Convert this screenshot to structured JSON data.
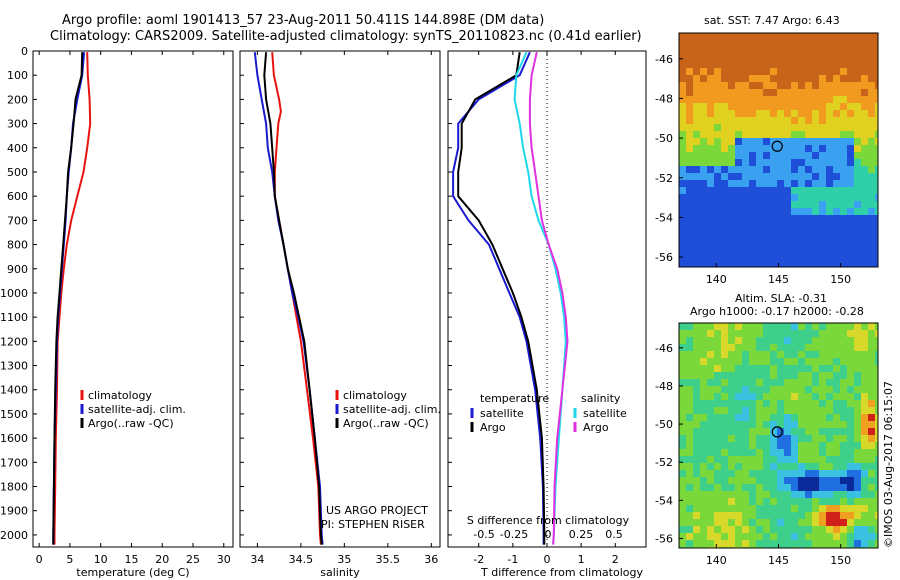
{
  "header": {
    "line1": "Argo profile: aoml 1901413_57 23-Aug-2011 50.411S 144.898E (DM data)",
    "line2": "Climatology: CARS2009. Satellite-adjusted climatology: synTS_20110823.nc (0.41d earlier)"
  },
  "sst_map": {
    "title": "sat. SST: 7.47 Argo: 6.43"
  },
  "sla_map": {
    "title_line1": "Altim. SLA: -0.31",
    "title_line2": "Argo h1000: -0.17 h2000: -0.28"
  },
  "credit": {
    "project_line1": "US ARGO PROJECT",
    "project_line2": "PI: STEPHEN RISER",
    "stamp": "©IMOS 03-Aug-2017 06:15:07"
  },
  "colors": {
    "climatology": "#e8120f",
    "satellite": "#1a1ad0",
    "argo": "#000000",
    "sal_satellite": "#1fd8ec",
    "sal_argo": "#e030e0"
  },
  "chart_data": [
    {
      "type": "line",
      "xlabel": "temperature (deg C)",
      "ylabel": "",
      "xlim": [
        -1,
        31.5
      ],
      "ylim": [
        2050,
        0
      ],
      "xticks": [
        0,
        5,
        10,
        15,
        20,
        25,
        30
      ],
      "yticks": [
        0,
        100,
        200,
        300,
        400,
        500,
        600,
        700,
        800,
        900,
        1000,
        1100,
        1200,
        1300,
        1400,
        1500,
        1600,
        1700,
        1800,
        1900,
        2000
      ],
      "legend": [
        "climatology",
        "satellite-adj. clim.",
        "Argo(..raw -QC)"
      ],
      "series": [
        {
          "name": "climatology",
          "color": "#e8120f",
          "points": [
            [
              7.8,
              5
            ],
            [
              7.9,
              100
            ],
            [
              8.2,
              200
            ],
            [
              8.3,
              300
            ],
            [
              7.8,
              400
            ],
            [
              7.2,
              500
            ],
            [
              6.2,
              600
            ],
            [
              5.2,
              700
            ],
            [
              4.5,
              800
            ],
            [
              4.0,
              900
            ],
            [
              3.6,
              1000
            ],
            [
              3.3,
              1100
            ],
            [
              3.0,
              1200
            ],
            [
              2.9,
              1400
            ],
            [
              2.7,
              1600
            ],
            [
              2.6,
              1800
            ],
            [
              2.5,
              2000
            ],
            [
              2.5,
              2040
            ]
          ]
        },
        {
          "name": "satellite-adj. clim.",
          "color": "#1a1ad0",
          "points": [
            [
              7.3,
              5
            ],
            [
              7.0,
              100
            ],
            [
              6.2,
              200
            ],
            [
              5.5,
              300
            ],
            [
              5.2,
              400
            ],
            [
              4.8,
              500
            ],
            [
              4.5,
              600
            ],
            [
              4.3,
              700
            ],
            [
              4.0,
              800
            ],
            [
              3.7,
              900
            ],
            [
              3.4,
              1000
            ],
            [
              3.1,
              1100
            ],
            [
              2.9,
              1200
            ],
            [
              2.7,
              1400
            ],
            [
              2.5,
              1600
            ],
            [
              2.4,
              1800
            ],
            [
              2.3,
              2000
            ],
            [
              2.3,
              2040
            ]
          ]
        },
        {
          "name": "Argo(..raw -QC)",
          "color": "#000000",
          "points": [
            [
              7.0,
              5
            ],
            [
              6.9,
              100
            ],
            [
              5.9,
              200
            ],
            [
              5.6,
              300
            ],
            [
              5.2,
              400
            ],
            [
              4.7,
              500
            ],
            [
              4.5,
              600
            ],
            [
              4.2,
              700
            ],
            [
              3.9,
              800
            ],
            [
              3.6,
              900
            ],
            [
              3.3,
              1000
            ],
            [
              3.0,
              1100
            ],
            [
              2.8,
              1200
            ],
            [
              2.6,
              1400
            ],
            [
              2.5,
              1600
            ],
            [
              2.4,
              1800
            ],
            [
              2.3,
              2000
            ],
            [
              2.3,
              2040
            ]
          ]
        }
      ]
    },
    {
      "type": "line",
      "xlabel": "salinity",
      "xlim": [
        33.8,
        36.1
      ],
      "ylim": [
        2050,
        0
      ],
      "xticks": [
        34,
        34.5,
        35,
        35.5,
        36
      ],
      "legend": [
        "climatology",
        "satellite-adj. clim.",
        "Argo(..raw -QC)"
      ],
      "series": [
        {
          "name": "climatology",
          "color": "#e8120f",
          "points": [
            [
              34.17,
              5
            ],
            [
              34.19,
              100
            ],
            [
              34.25,
              200
            ],
            [
              34.27,
              250
            ],
            [
              34.24,
              300
            ],
            [
              34.22,
              400
            ],
            [
              34.2,
              500
            ],
            [
              34.2,
              600
            ],
            [
              34.25,
              700
            ],
            [
              34.3,
              800
            ],
            [
              34.35,
              900
            ],
            [
              34.4,
              1000
            ],
            [
              34.45,
              1100
            ],
            [
              34.5,
              1200
            ],
            [
              34.57,
              1400
            ],
            [
              34.64,
              1600
            ],
            [
              34.7,
              1800
            ],
            [
              34.72,
              2000
            ],
            [
              34.73,
              2040
            ]
          ]
        },
        {
          "name": "satellite-adj. clim.",
          "color": "#1a1ad0",
          "points": [
            [
              33.97,
              5
            ],
            [
              34.0,
              100
            ],
            [
              34.05,
              200
            ],
            [
              34.1,
              300
            ],
            [
              34.12,
              400
            ],
            [
              34.17,
              500
            ],
            [
              34.2,
              600
            ],
            [
              34.24,
              700
            ],
            [
              34.3,
              800
            ],
            [
              34.35,
              900
            ],
            [
              34.4,
              1000
            ],
            [
              34.47,
              1100
            ],
            [
              34.53,
              1200
            ],
            [
              34.6,
              1400
            ],
            [
              34.66,
              1600
            ],
            [
              34.72,
              1800
            ],
            [
              34.74,
              2000
            ],
            [
              34.75,
              2040
            ]
          ]
        },
        {
          "name": "Argo(..raw -QC)",
          "color": "#000000",
          "points": [
            [
              34.1,
              5
            ],
            [
              34.08,
              100
            ],
            [
              34.1,
              200
            ],
            [
              34.15,
              300
            ],
            [
              34.17,
              400
            ],
            [
              34.19,
              500
            ],
            [
              34.2,
              600
            ],
            [
              34.25,
              700
            ],
            [
              34.3,
              800
            ],
            [
              34.35,
              900
            ],
            [
              34.42,
              1000
            ],
            [
              34.48,
              1100
            ],
            [
              34.54,
              1200
            ],
            [
              34.6,
              1400
            ],
            [
              34.66,
              1600
            ],
            [
              34.71,
              1800
            ],
            [
              34.73,
              2000
            ],
            [
              34.74,
              2040
            ]
          ]
        }
      ],
      "annotations": [
        "US ARGO PROJECT",
        "PI: STEPHEN RISER"
      ]
    },
    {
      "type": "line",
      "xlabel": "T difference from climatology",
      "secondary_xlabel": "S difference from climatology",
      "xlim": [
        -2.9,
        2.9
      ],
      "ylim": [
        2050,
        0
      ],
      "xticks": [
        -2,
        -1,
        0,
        1,
        2
      ],
      "secondary_xticks": [
        "-0.5",
        "-0.25",
        "0",
        "0.25",
        "0.5"
      ],
      "legend_titles": [
        "temperature",
        "salinity"
      ],
      "legend": [
        "satellite",
        "Argo",
        "satellite",
        "Argo"
      ],
      "series": [
        {
          "name": "satellite",
          "group": "temperature",
          "color": "#1a1ad0",
          "points": [
            [
              -0.5,
              5
            ],
            [
              -0.8,
              100
            ],
            [
              -2.0,
              200
            ],
            [
              -2.6,
              300
            ],
            [
              -2.6,
              400
            ],
            [
              -2.75,
              500
            ],
            [
              -2.75,
              600
            ],
            [
              -2.3,
              700
            ],
            [
              -1.7,
              800
            ],
            [
              -1.4,
              900
            ],
            [
              -1.1,
              1000
            ],
            [
              -0.8,
              1100
            ],
            [
              -0.6,
              1200
            ],
            [
              -0.35,
              1400
            ],
            [
              -0.2,
              1600
            ],
            [
              -0.12,
              1800
            ],
            [
              -0.1,
              2000
            ],
            [
              -0.1,
              2040
            ]
          ]
        },
        {
          "name": "Argo",
          "group": "temperature",
          "color": "#000000",
          "points": [
            [
              -0.8,
              5
            ],
            [
              -0.9,
              100
            ],
            [
              -2.1,
              200
            ],
            [
              -2.5,
              300
            ],
            [
              -2.5,
              400
            ],
            [
              -2.6,
              500
            ],
            [
              -2.6,
              600
            ],
            [
              -2.0,
              700
            ],
            [
              -1.6,
              800
            ],
            [
              -1.3,
              900
            ],
            [
              -1.0,
              1000
            ],
            [
              -0.75,
              1100
            ],
            [
              -0.55,
              1200
            ],
            [
              -0.3,
              1400
            ],
            [
              -0.15,
              1600
            ],
            [
              -0.1,
              1800
            ],
            [
              -0.08,
              2000
            ],
            [
              -0.08,
              2040
            ]
          ]
        },
        {
          "name": "satellite",
          "group": "salinity",
          "color": "#1fd8ec",
          "points": [
            [
              -0.6,
              5
            ],
            [
              -0.9,
              100
            ],
            [
              -0.95,
              200
            ],
            [
              -0.8,
              300
            ],
            [
              -0.7,
              400
            ],
            [
              -0.55,
              500
            ],
            [
              -0.45,
              600
            ],
            [
              -0.25,
              700
            ],
            [
              0.05,
              800
            ],
            [
              0.25,
              900
            ],
            [
              0.4,
              1000
            ],
            [
              0.5,
              1100
            ],
            [
              0.55,
              1200
            ],
            [
              0.45,
              1400
            ],
            [
              0.35,
              1600
            ],
            [
              0.25,
              1800
            ],
            [
              0.2,
              2000
            ],
            [
              0.18,
              2040
            ]
          ]
        },
        {
          "name": "Argo",
          "group": "salinity",
          "color": "#e030e0",
          "points": [
            [
              -0.3,
              5
            ],
            [
              -0.45,
              100
            ],
            [
              -0.5,
              200
            ],
            [
              -0.5,
              300
            ],
            [
              -0.45,
              400
            ],
            [
              -0.35,
              500
            ],
            [
              -0.25,
              600
            ],
            [
              -0.15,
              700
            ],
            [
              0.05,
              800
            ],
            [
              0.3,
              900
            ],
            [
              0.45,
              1000
            ],
            [
              0.55,
              1100
            ],
            [
              0.6,
              1200
            ],
            [
              0.45,
              1400
            ],
            [
              0.3,
              1600
            ],
            [
              0.22,
              1800
            ],
            [
              0.2,
              2000
            ],
            [
              0.18,
              2040
            ]
          ]
        }
      ]
    },
    {
      "type": "heatmap",
      "title": "sat. SST: 7.47 Argo: 6.43",
      "xlim": [
        137,
        153
      ],
      "ylim": [
        -56.5,
        -44.7
      ],
      "xticks": [
        140,
        145,
        150
      ],
      "yticks": [
        -46,
        -48,
        -50,
        -52,
        -54,
        -56
      ],
      "marker": {
        "lon": 144.898,
        "lat": -50.411
      }
    },
    {
      "type": "heatmap",
      "title": "Altim. SLA: -0.31",
      "subtitle": "Argo h1000: -0.17 h2000: -0.28",
      "xlim": [
        137,
        153
      ],
      "ylim": [
        -56.5,
        -44.7
      ],
      "xticks": [
        140,
        145,
        150
      ],
      "yticks": [
        -46,
        -48,
        -50,
        -52,
        -54,
        -56
      ],
      "marker": {
        "lon": 144.898,
        "lat": -50.411
      }
    }
  ]
}
